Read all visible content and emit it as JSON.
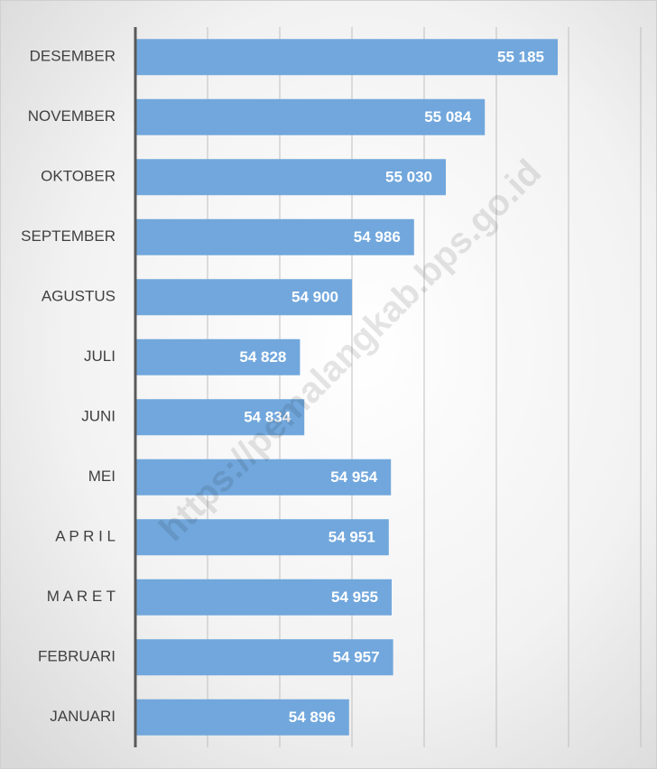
{
  "chart_data": {
    "type": "barh",
    "categories": [
      "DESEMBER",
      "NOVEMBER",
      "OKTOBER",
      "SEPTEMBER",
      "AGUSTUS",
      "JULI",
      "JUNI",
      "MEI",
      "A P R I L",
      "M A R E T",
      "FEBRUARI",
      "JANUARI"
    ],
    "values": [
      55185,
      55084,
      55030,
      54986,
      54900,
      54828,
      54834,
      54954,
      54951,
      54955,
      54957,
      54896
    ],
    "value_labels": [
      "55 185",
      "55 084",
      "55 030",
      "54 986",
      "54 900",
      "54 828",
      "54 834",
      "54 954",
      "54 951",
      "54 955",
      "54 957",
      "54 896"
    ],
    "color": "#71a7dc",
    "xlim": [
      54600,
      55300
    ],
    "xticks": [
      54600,
      54700,
      54800,
      54900,
      55000,
      55100,
      55200,
      55300
    ],
    "grid": true,
    "watermark": "https://pemalangkab.bps.go.id"
  }
}
